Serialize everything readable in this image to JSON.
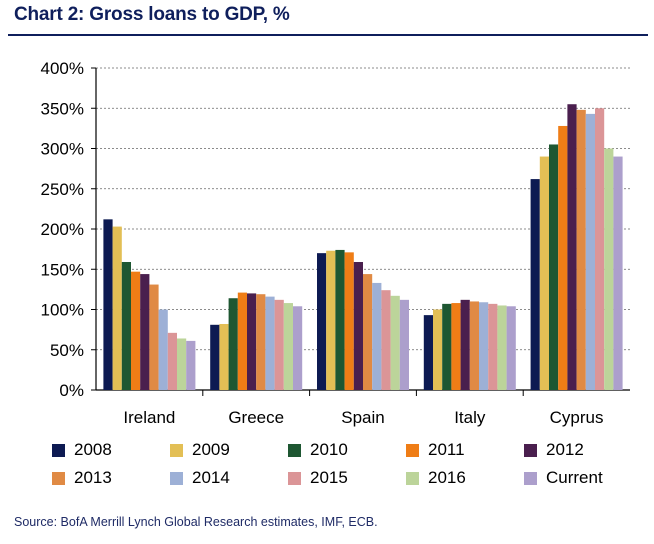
{
  "title": "Chart 2: Gross loans to GDP, %",
  "source": "Source: BofA Merrill Lynch Global Research estimates, IMF, ECB.",
  "chart_data": {
    "type": "bar",
    "title": "Chart 2: Gross loans to GDP, %",
    "xlabel": "",
    "ylabel": "",
    "ylim": [
      0,
      400
    ],
    "yticks": [
      0,
      50,
      100,
      150,
      200,
      250,
      300,
      350,
      400
    ],
    "ytick_labels": [
      "0%",
      "50%",
      "100%",
      "150%",
      "200%",
      "250%",
      "300%",
      "350%",
      "400%"
    ],
    "grid": "horizontal dashed",
    "legend_position": "bottom",
    "categories": [
      "Ireland",
      "Greece",
      "Spain",
      "Italy",
      "Cyprus"
    ],
    "series": [
      {
        "name": "2008",
        "color": "#0d1a52",
        "values": [
          212,
          81,
          170,
          93,
          262
        ]
      },
      {
        "name": "2009",
        "color": "#e3bf55",
        "values": [
          203,
          82,
          173,
          100,
          290
        ]
      },
      {
        "name": "2010",
        "color": "#1e5732",
        "values": [
          159,
          114,
          174,
          107,
          305
        ]
      },
      {
        "name": "2011",
        "color": "#ef7d16",
        "values": [
          147,
          121,
          171,
          108,
          328
        ]
      },
      {
        "name": "2012",
        "color": "#4a1f4e",
        "values": [
          144,
          120,
          159,
          112,
          355
        ]
      },
      {
        "name": "2013",
        "color": "#e08a44",
        "values": [
          131,
          119,
          144,
          110,
          348
        ]
      },
      {
        "name": "2014",
        "color": "#9db0d6",
        "values": [
          100,
          116,
          133,
          109,
          343
        ]
      },
      {
        "name": "2015",
        "color": "#db9597",
        "values": [
          71,
          112,
          124,
          107,
          350
        ]
      },
      {
        "name": "2016",
        "color": "#bcd49a",
        "values": [
          64,
          108,
          117,
          105,
          300
        ]
      },
      {
        "name": "Current",
        "color": "#ac9fcc",
        "values": [
          61,
          104,
          112,
          104,
          290
        ]
      }
    ]
  }
}
